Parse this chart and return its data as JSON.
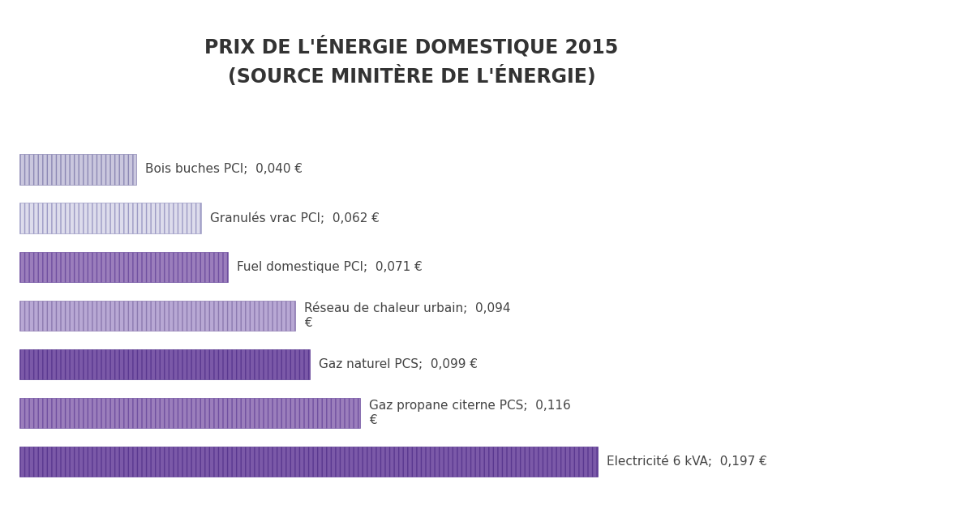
{
  "title_line1": "PRIX DE L'ÉNERGIE DOMESTIQUE 2015",
  "title_line2": "(SOURCE MINITÈRE DE L'ÉNERGIE)",
  "categories": [
    "Bois buches PCI",
    "Granulés vrac PCI",
    "Fuel domestique PCI",
    "Réseau de chaleur urbain",
    "Gaz naturel PCS",
    "Gaz propane citerne PCS",
    "Electricité 6 kVA"
  ],
  "values": [
    0.04,
    0.062,
    0.071,
    0.094,
    0.099,
    0.116,
    0.197
  ],
  "labels": [
    "Bois buches PCI;  0,040 €",
    "Granulés vrac PCI;  0,062 €",
    "Fuel domestique PCI;  0,071 €",
    "Réseau de chaleur urbain;  0,094\n€",
    "Gaz naturel PCS;  0,099 €",
    "Gaz propane citerne PCS;  0,116\n€",
    "Electricité 6 kVA;  0,197 €"
  ],
  "face_colors": [
    "#cac7de",
    "#dddcec",
    "#9b7ebc",
    "#b8a8d4",
    "#7b59a8",
    "#9b7ebc",
    "#7b59a8"
  ],
  "edge_colors": [
    "#8c88b4",
    "#9c9ac4",
    "#7050a0",
    "#8c7ab0",
    "#5a3890",
    "#7050a0",
    "#5a3890"
  ],
  "background_color": "#ffffff",
  "title_fontsize": 17,
  "label_fontsize": 11,
  "bar_height": 0.62,
  "xlim_max": 0.215
}
